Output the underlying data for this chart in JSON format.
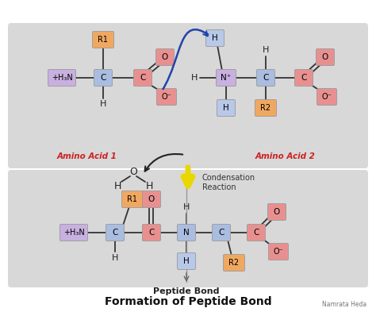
{
  "title": "Formation of Peptide Bond",
  "subtitle": "Peptide Bond",
  "credit": "Namrata Heda",
  "colors": {
    "blue_box": "#aabde0",
    "orange_box": "#f0a860",
    "pink_box": "#e89090",
    "purple_box": "#c8b0e0",
    "light_blue": "#b8c8e8"
  },
  "amino_acid1_label": "Amino Acid 1",
  "amino_acid2_label": "Amino Acid 2",
  "condensation_label": "Condensation\nReaction"
}
